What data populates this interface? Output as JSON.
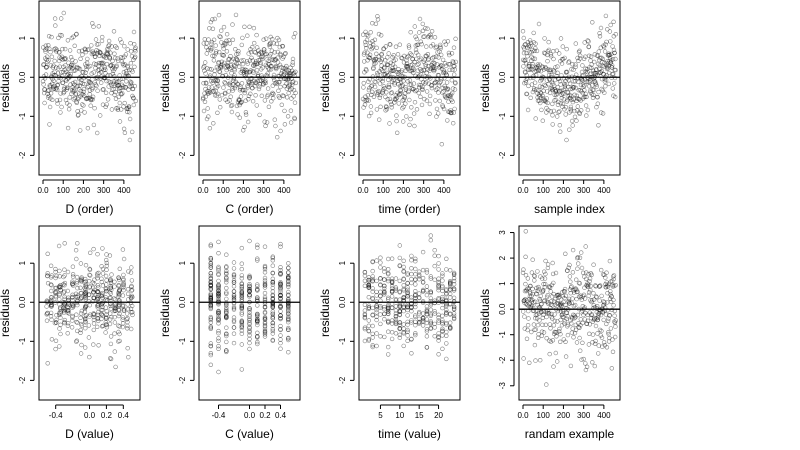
{
  "chart_data": [
    {
      "type": "scatter",
      "xlabel": "D (order)",
      "ylabel": "residuals",
      "xlim": [
        0,
        460
      ],
      "ylim": [
        -2.4,
        1.85
      ],
      "xticks": [
        0,
        100,
        200,
        300,
        400
      ],
      "yticks": [
        -2,
        -1,
        0,
        1
      ],
      "hline": 0,
      "gen": {
        "kind": "order",
        "n": 460,
        "seed": 11
      }
    },
    {
      "type": "scatter",
      "xlabel": "C (order)",
      "ylabel": "residuals",
      "xlim": [
        0,
        460
      ],
      "ylim": [
        -2.4,
        1.85
      ],
      "xticks": [
        0,
        100,
        200,
        300,
        400
      ],
      "yticks": [
        -2,
        -1,
        0,
        1
      ],
      "hline": 0,
      "gen": {
        "kind": "order",
        "n": 460,
        "seed": 23
      }
    },
    {
      "type": "scatter",
      "xlabel": "time (order)",
      "ylabel": "residuals",
      "xlim": [
        0,
        460
      ],
      "ylim": [
        -2.4,
        1.85
      ],
      "xticks": [
        0,
        100,
        200,
        300,
        400
      ],
      "yticks": [
        -2,
        -1,
        0,
        1
      ],
      "hline": 0,
      "gen": {
        "kind": "order",
        "n": 460,
        "seed": 37
      }
    },
    {
      "type": "scatter",
      "xlabel": "sample index",
      "ylabel": "residuals",
      "xlim": [
        0,
        460
      ],
      "ylim": [
        -2.4,
        1.85
      ],
      "xticks": [
        0,
        100,
        200,
        300,
        400
      ],
      "yticks": [
        -2,
        -1,
        0,
        1
      ],
      "hline": 0,
      "gen": {
        "kind": "index",
        "n": 460,
        "seed": 41
      }
    },
    {
      "type": "scatter",
      "xlabel": "D (value)",
      "ylabel": "residuals",
      "xlim": [
        -0.55,
        0.55
      ],
      "ylim": [
        -2.4,
        1.85
      ],
      "xticks": [
        -0.4,
        0.0,
        0.2,
        0.4
      ],
      "yticks": [
        -2,
        -1,
        0,
        1
      ],
      "hline": 0,
      "gen": {
        "kind": "continuous",
        "n": 460,
        "seed": 53,
        "levels": [
          -0.5,
          -0.45,
          -0.4,
          -0.35,
          -0.3,
          -0.25,
          -0.2,
          -0.15,
          -0.1,
          -0.05,
          0.0,
          0.05,
          0.1,
          0.15,
          0.2,
          0.25,
          0.3,
          0.35,
          0.4,
          0.45,
          0.5
        ]
      }
    },
    {
      "type": "scatter",
      "xlabel": "C (value)",
      "ylabel": "residuals",
      "xlim": [
        -0.6,
        0.6
      ],
      "ylim": [
        -2.4,
        1.85
      ],
      "xticks": [
        -0.4,
        0.0,
        0.2,
        0.4
      ],
      "yticks": [
        -2,
        -1,
        0,
        1
      ],
      "hline": 0,
      "gen": {
        "kind": "discrete",
        "n": 460,
        "seed": 67,
        "levels": [
          -0.5,
          -0.4,
          -0.3,
          -0.2,
          -0.1,
          0.0,
          0.1,
          0.2,
          0.3,
          0.4,
          0.5
        ]
      }
    },
    {
      "type": "scatter",
      "xlabel": "time (value)",
      "ylabel": "residuals",
      "xlim": [
        0.5,
        24.5
      ],
      "ylim": [
        -2.4,
        1.85
      ],
      "xticks": [
        5,
        10,
        15,
        20
      ],
      "yticks": [
        -2,
        -1,
        0,
        1
      ],
      "hline": 0,
      "gen": {
        "kind": "discrete",
        "n": 460,
        "seed": 79,
        "levels": [
          1,
          2,
          3,
          4,
          5,
          6,
          7,
          8,
          9,
          10,
          11,
          12,
          13,
          14,
          15,
          16,
          17,
          18,
          19,
          20,
          21,
          22,
          23,
          24
        ]
      }
    },
    {
      "type": "scatter",
      "xlabel": "randam example",
      "ylabel": "residuals",
      "xlim": [
        0,
        460
      ],
      "ylim": [
        -3.4,
        3.1
      ],
      "xticks": [
        0,
        100,
        200,
        300,
        400
      ],
      "yticks": [
        -3,
        -2,
        -1,
        0,
        1,
        2,
        3
      ],
      "hline": 0,
      "gen": {
        "kind": "random",
        "n": 460,
        "seed": 97
      }
    }
  ]
}
